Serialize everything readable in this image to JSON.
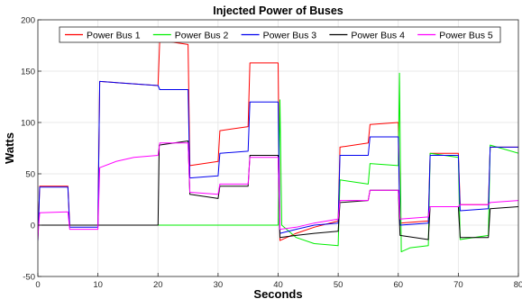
{
  "chart_data": {
    "type": "line",
    "title": "Injected Power of Buses",
    "xlabel": "Seconds",
    "ylabel": "Watts",
    "xlim": [
      0,
      80
    ],
    "ylim": [
      -50,
      200
    ],
    "xticks": [
      0,
      10,
      20,
      30,
      40,
      50,
      60,
      70,
      80
    ],
    "yticks": [
      -50,
      0,
      50,
      100,
      150,
      200
    ],
    "grid": true,
    "legend": {
      "placement": "top",
      "orientation": "horizontal"
    },
    "series": [
      {
        "name": "Power Bus 1",
        "color": "#ff0000",
        "points": [
          [
            0,
            -15
          ],
          [
            0.3,
            38
          ],
          [
            5,
            38
          ],
          [
            5.3,
            0
          ],
          [
            10,
            0
          ],
          [
            10.3,
            140
          ],
          [
            20,
            136
          ],
          [
            20.3,
            180
          ],
          [
            25,
            176
          ],
          [
            25.3,
            58
          ],
          [
            30,
            62
          ],
          [
            30.3,
            92
          ],
          [
            35,
            96
          ],
          [
            35.3,
            158
          ],
          [
            40,
            158
          ],
          [
            40.3,
            -15
          ],
          [
            43,
            -8
          ],
          [
            46,
            -2
          ],
          [
            50,
            4
          ],
          [
            50.3,
            76
          ],
          [
            55,
            80
          ],
          [
            55.3,
            98
          ],
          [
            60,
            100
          ],
          [
            60.3,
            2
          ],
          [
            65,
            4
          ],
          [
            65.3,
            70
          ],
          [
            70,
            70
          ],
          [
            70.3,
            20
          ],
          [
            75,
            20
          ],
          [
            75.3,
            76
          ],
          [
            80,
            76
          ]
        ]
      },
      {
        "name": "Power Bus 2",
        "color": "#00ee00",
        "points": [
          [
            0,
            0
          ],
          [
            40,
            0
          ],
          [
            40.3,
            122
          ],
          [
            40.6,
            0
          ],
          [
            43,
            -12
          ],
          [
            46,
            -18
          ],
          [
            50,
            -20
          ],
          [
            50.3,
            44
          ],
          [
            55,
            40
          ],
          [
            55.3,
            60
          ],
          [
            60,
            58
          ],
          [
            60.2,
            148
          ],
          [
            60.5,
            -26
          ],
          [
            62,
            -22
          ],
          [
            65,
            -20
          ],
          [
            65.3,
            70
          ],
          [
            70,
            66
          ],
          [
            70.3,
            -14
          ],
          [
            75,
            -10
          ],
          [
            75.3,
            78
          ],
          [
            80,
            70
          ]
        ]
      },
      {
        "name": "Power Bus 3",
        "color": "#0000ee",
        "points": [
          [
            0,
            -15
          ],
          [
            0.3,
            37
          ],
          [
            5,
            37
          ],
          [
            5.3,
            -2
          ],
          [
            10,
            -2
          ],
          [
            10.3,
            140
          ],
          [
            20,
            136
          ],
          [
            20.3,
            132
          ],
          [
            25,
            132
          ],
          [
            25.3,
            46
          ],
          [
            30,
            48
          ],
          [
            30.3,
            70
          ],
          [
            35,
            72
          ],
          [
            35.3,
            120
          ],
          [
            40,
            120
          ],
          [
            40.3,
            -8
          ],
          [
            43,
            -4
          ],
          [
            46,
            0
          ],
          [
            50,
            2
          ],
          [
            50.3,
            68
          ],
          [
            55,
            68
          ],
          [
            55.3,
            86
          ],
          [
            60,
            86
          ],
          [
            60.3,
            0
          ],
          [
            65,
            2
          ],
          [
            65.3,
            68
          ],
          [
            70,
            68
          ],
          [
            70.3,
            14
          ],
          [
            75,
            16
          ],
          [
            75.3,
            76
          ],
          [
            80,
            76
          ]
        ]
      },
      {
        "name": "Power Bus 4",
        "color": "#000000",
        "points": [
          [
            0,
            0
          ],
          [
            20,
            0
          ],
          [
            20.2,
            78
          ],
          [
            25,
            82
          ],
          [
            25.3,
            30
          ],
          [
            30,
            26
          ],
          [
            30.3,
            38
          ],
          [
            35,
            38
          ],
          [
            35.3,
            68
          ],
          [
            40,
            68
          ],
          [
            40.3,
            -12
          ],
          [
            43,
            -10
          ],
          [
            46,
            -8
          ],
          [
            50,
            -6
          ],
          [
            50.3,
            22
          ],
          [
            55,
            24
          ],
          [
            55.3,
            34
          ],
          [
            60,
            34
          ],
          [
            60.3,
            -10
          ],
          [
            65,
            -14
          ],
          [
            65.3,
            18
          ],
          [
            70,
            18
          ],
          [
            70.3,
            -12
          ],
          [
            75,
            -12
          ],
          [
            75.3,
            16
          ],
          [
            80,
            18
          ]
        ]
      },
      {
        "name": "Power Bus 5",
        "color": "#ff00ff",
        "points": [
          [
            0,
            -12
          ],
          [
            0.3,
            12
          ],
          [
            5,
            13
          ],
          [
            5.3,
            -4
          ],
          [
            10,
            -4
          ],
          [
            10.3,
            56
          ],
          [
            13,
            62
          ],
          [
            16,
            66
          ],
          [
            20,
            68
          ],
          [
            20.3,
            80
          ],
          [
            25,
            80
          ],
          [
            25.3,
            32
          ],
          [
            30,
            30
          ],
          [
            30.3,
            40
          ],
          [
            35,
            40
          ],
          [
            35.3,
            66
          ],
          [
            40,
            66
          ],
          [
            40.3,
            -4
          ],
          [
            43,
            -2
          ],
          [
            46,
            2
          ],
          [
            50,
            6
          ],
          [
            50.3,
            24
          ],
          [
            55,
            24
          ],
          [
            55.3,
            34
          ],
          [
            60,
            34
          ],
          [
            60.3,
            6
          ],
          [
            65,
            8
          ],
          [
            65.3,
            18
          ],
          [
            70,
            18
          ],
          [
            70.3,
            20
          ],
          [
            75,
            20
          ],
          [
            75.3,
            22
          ],
          [
            80,
            24
          ]
        ]
      }
    ]
  }
}
